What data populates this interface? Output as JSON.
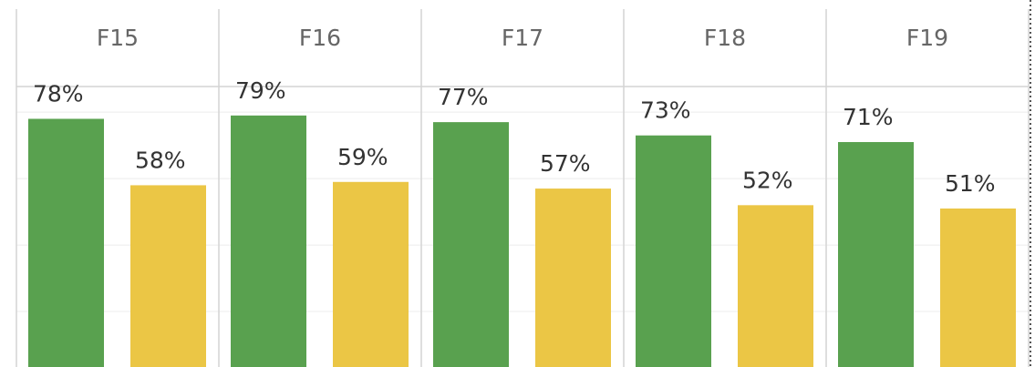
{
  "chart_data": {
    "type": "bar",
    "categories": [
      "F15",
      "F16",
      "F17",
      "F18",
      "F19"
    ],
    "series": [
      {
        "color": "#59a14f",
        "values": [
          78,
          79,
          77,
          73,
          71
        ],
        "value_labels": [
          "78%",
          "79%",
          "77%",
          "73%",
          "71%"
        ]
      },
      {
        "color": "#ebc645",
        "values": [
          58,
          59,
          57,
          52,
          51
        ],
        "value_labels": [
          "58%",
          "59%",
          "57%",
          "52%",
          "51%"
        ]
      }
    ],
    "ylim": [
      0,
      88
    ],
    "yticks": [
      20,
      40,
      60,
      80
    ],
    "grid": true
  }
}
